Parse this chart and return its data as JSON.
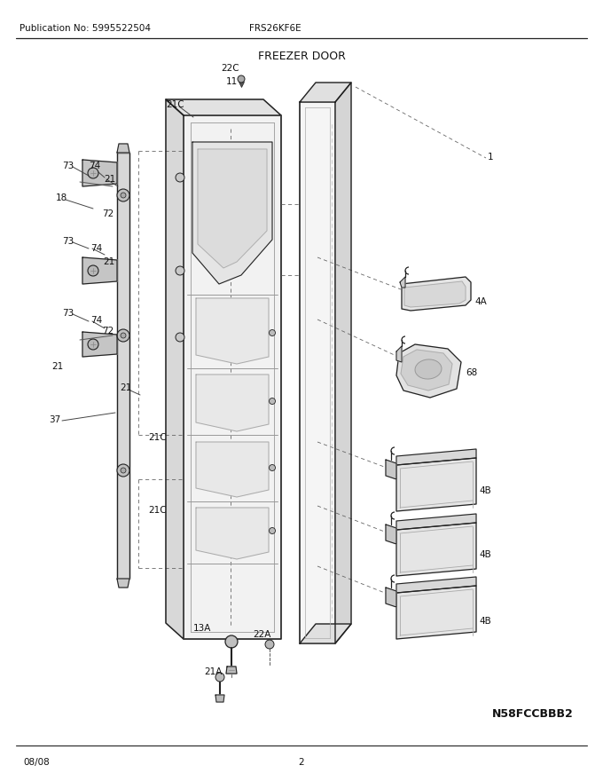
{
  "title": "FREEZER DOOR",
  "pub_no": "Publication No: 5995522504",
  "model": "FRS26KF6E",
  "part_no": "N58FCCBBB2",
  "date": "08/08",
  "page": "2",
  "bg_color": "#ffffff",
  "lc": "#222222",
  "tc": "#111111",
  "fill_light": "#f0f0f0",
  "fill_mid": "#e0e0e0",
  "fill_dark": "#cccccc",
  "fill_frame": "#f8f8f8"
}
